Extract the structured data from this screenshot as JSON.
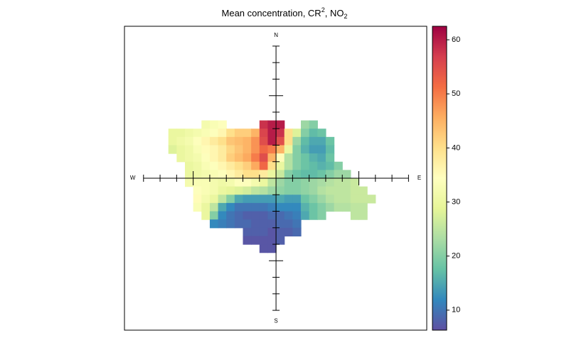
{
  "chart_data": {
    "type": "polar-heatmap",
    "title_parts": [
      "Mean concentration, CR",
      "2",
      ", NO",
      "2"
    ],
    "compass_labels": [
      "N",
      "E",
      "S",
      "W"
    ],
    "xlim": [
      -9.15,
      9.1
    ],
    "ylim": [
      -9.2,
      9.2
    ],
    "compass_ticks": [
      1,
      2,
      3,
      4,
      5,
      6,
      7,
      8
    ],
    "compass_major": [
      5
    ],
    "x": [
      -6.25,
      -5.75,
      -5.25,
      -4.75,
      -4.25,
      -3.75,
      -3.25,
      -2.75,
      -2.25,
      -1.75,
      -1.25,
      -0.75,
      -0.25,
      0.25,
      0.75,
      1.25,
      1.75,
      2.25,
      2.75,
      3.25,
      3.75,
      4.25,
      4.75,
      5.25,
      5.75
    ],
    "y": [
      3.25,
      2.75,
      2.25,
      1.75,
      1.25,
      0.75,
      0.25,
      -0.25,
      -0.75,
      -1.25,
      -1.75,
      -2.25,
      -2.75,
      -3.25,
      -3.75,
      -4.25
    ],
    "z": [
      [
        null,
        null,
        null,
        null,
        32,
        33,
        34,
        null,
        null,
        null,
        null,
        58,
        60,
        60,
        null,
        null,
        22,
        20,
        null,
        null,
        null,
        null,
        null,
        null,
        null
      ],
      [
        30,
        30,
        31,
        32,
        33,
        34,
        36,
        40,
        42,
        42,
        45,
        56,
        60,
        58,
        40,
        28,
        20,
        17,
        18,
        null,
        null,
        null,
        null,
        null,
        null
      ],
      [
        30,
        31,
        32,
        34,
        36,
        38,
        40,
        43,
        44,
        45,
        48,
        55,
        60,
        55,
        40,
        22,
        17,
        15,
        15,
        18,
        null,
        null,
        null,
        null,
        null
      ],
      [
        28,
        30,
        31,
        33,
        35,
        36,
        38,
        41,
        43,
        45,
        48,
        52,
        50,
        45,
        30,
        20,
        16,
        14,
        14,
        17,
        null,
        null,
        null,
        null,
        null
      ],
      [
        null,
        30,
        31,
        32,
        34,
        36,
        38,
        42,
        44,
        46,
        50,
        55,
        45,
        35,
        24,
        20,
        18,
        16,
        15,
        18,
        null,
        null,
        null,
        null,
        null
      ],
      [
        null,
        null,
        30,
        31,
        33,
        34,
        36,
        38,
        40,
        42,
        46,
        52,
        40,
        30,
        24,
        20,
        18,
        17,
        16,
        17,
        20,
        null,
        null,
        null,
        null
      ],
      [
        null,
        null,
        30,
        31,
        32,
        33,
        34,
        36,
        38,
        40,
        40,
        38,
        30,
        26,
        20,
        18,
        17,
        17,
        18,
        20,
        22,
        22,
        null,
        null,
        null
      ],
      [
        null,
        null,
        32,
        33,
        33,
        32,
        31,
        32,
        34,
        34,
        32,
        30,
        25,
        22,
        20,
        20,
        21,
        22,
        23,
        24,
        25,
        25,
        26,
        null,
        null
      ],
      [
        null,
        null,
        null,
        34,
        33,
        32,
        30,
        29,
        28,
        27,
        25,
        24,
        22,
        21,
        20,
        20,
        21,
        22,
        24,
        25,
        25,
        25,
        26,
        26,
        null
      ],
      [
        null,
        null,
        null,
        35,
        32,
        30,
        25,
        20,
        15,
        14,
        14,
        14,
        14,
        15,
        14,
        14,
        18,
        20,
        22,
        24,
        25,
        25,
        26,
        26,
        26
      ],
      [
        null,
        null,
        null,
        33,
        30,
        25,
        15,
        12,
        10,
        10,
        10,
        10,
        11,
        12,
        12,
        12,
        16,
        18,
        20,
        22,
        24,
        24,
        25,
        25,
        null
      ],
      [
        null,
        null,
        null,
        null,
        30,
        20,
        12,
        10,
        9,
        8,
        8,
        8,
        9,
        9,
        10,
        11,
        15,
        18,
        20,
        null,
        null,
        null,
        25,
        25,
        null
      ],
      [
        null,
        null,
        null,
        null,
        null,
        12,
        11,
        10,
        9,
        9,
        8,
        8,
        8,
        9,
        9,
        10,
        null,
        null,
        null,
        null,
        null,
        null,
        null,
        null,
        null
      ],
      [
        null,
        null,
        null,
        null,
        null,
        null,
        null,
        null,
        null,
        8,
        8,
        8,
        7,
        8,
        8,
        9,
        null,
        null,
        null,
        null,
        null,
        null,
        null,
        null,
        null
      ],
      [
        null,
        null,
        null,
        null,
        null,
        null,
        null,
        null,
        null,
        7,
        7,
        7,
        7,
        8,
        null,
        null,
        null,
        null,
        null,
        null,
        null,
        null,
        null,
        null,
        null
      ],
      [
        null,
        null,
        null,
        null,
        null,
        null,
        null,
        null,
        null,
        null,
        null,
        7,
        7,
        null,
        null,
        null,
        null,
        null,
        null,
        null,
        null,
        null,
        null,
        null,
        null
      ]
    ],
    "zlim": [
      6.3,
      62.5
    ],
    "zticks": [
      10,
      20,
      30,
      40,
      50,
      60
    ],
    "colors": [
      "#5e4fa2",
      "#3288bd",
      "#66c2a5",
      "#abdda4",
      "#e6f598",
      "#ffffbf",
      "#fee08b",
      "#fdae61",
      "#f46d43",
      "#d53e4f",
      "#9e0142"
    ]
  }
}
